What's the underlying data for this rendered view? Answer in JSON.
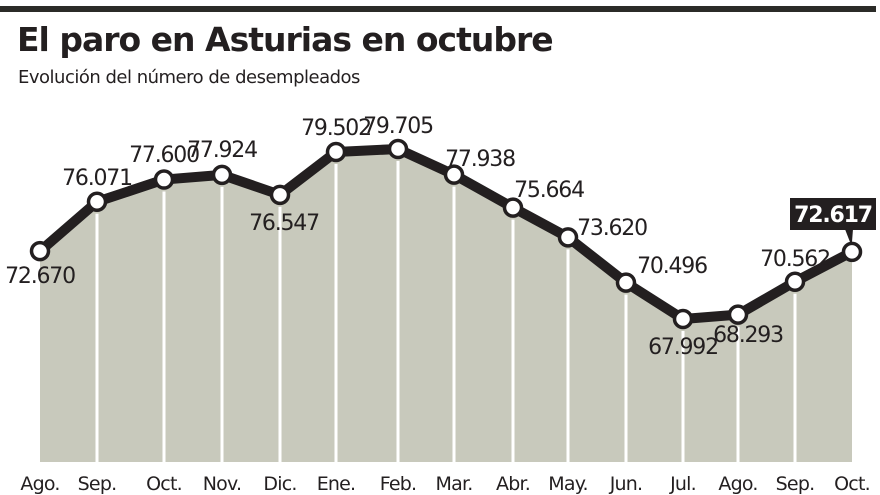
{
  "header": {
    "title": "El paro en Asturias en octubre",
    "subtitle": "Evolución del número de desempleados"
  },
  "colors": {
    "line": "#231f20",
    "fill": "#c8c9bc",
    "marker_fill": "#ffffff",
    "highlight_bg": "#231f20",
    "highlight_text": "#ffffff",
    "rule": "#2b2b28"
  },
  "chart_data": {
    "type": "area",
    "title": "El paro en Asturias en octubre",
    "subtitle": "Evolución del número de desempleados",
    "xlabel": "",
    "ylabel": "",
    "grid": false,
    "legend": null,
    "categories": [
      "Ago.",
      "Sep.",
      "Oct.",
      "Nov.",
      "Dic.",
      "Ene.",
      "Feb.",
      "Mar.",
      "Abr.",
      "May.",
      "Jun.",
      "Jul.",
      "Ago.",
      "Sep.",
      "Oct."
    ],
    "values": [
      72670,
      76071,
      77600,
      77924,
      76547,
      79502,
      79705,
      77938,
      75664,
      73620,
      70496,
      67992,
      68293,
      70562,
      72617
    ],
    "value_labels": [
      "72.670",
      "76.071",
      "77.600",
      "77.924",
      "76.547",
      "79.502",
      "79.705",
      "77.938",
      "75.664",
      "73.620",
      "70.496",
      "67.992",
      "68.293",
      "70.562",
      "72.617"
    ],
    "highlighted_point": {
      "index": 14,
      "label": "72.617"
    },
    "series": [
      {
        "name": "Desempleados",
        "values": [
          72670,
          76071,
          77600,
          77924,
          76547,
          79502,
          79705,
          77938,
          75664,
          73620,
          70496,
          67992,
          68293,
          70562,
          72617
        ]
      }
    ]
  }
}
